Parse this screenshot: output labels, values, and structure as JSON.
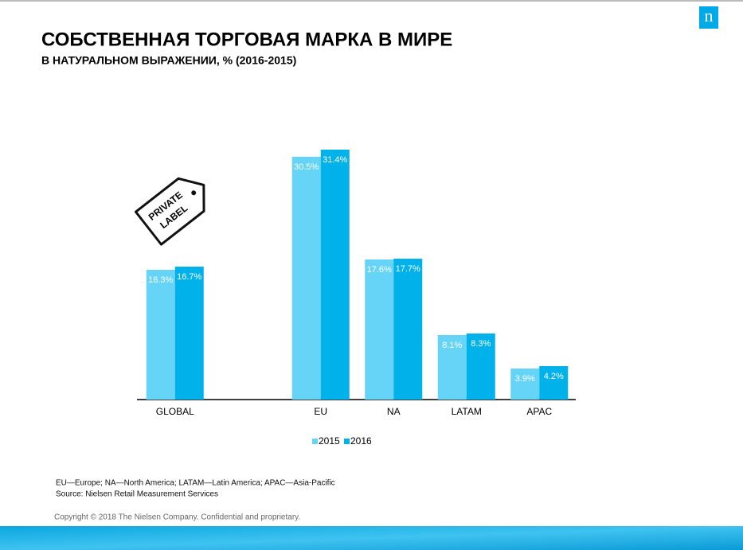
{
  "chart_data": {
    "type": "bar",
    "title": "СОБСТВЕННАЯ ТОРГОВАЯ МАРКА  В МИРЕ",
    "subtitle": "В НАТУРАЛЬНОМ ВЫРАЖЕНИИ, %  (2016-2015)",
    "categories": [
      "GLOBAL",
      null,
      "EU",
      "NA",
      "LATAM",
      "APAC"
    ],
    "series": [
      {
        "name": "2015",
        "color": "#66d4f6",
        "values": [
          16.3,
          null,
          30.5,
          17.6,
          8.1,
          3.9
        ],
        "value_labels": [
          "16.3%",
          null,
          "30.5%",
          "17.6%",
          "8.1%",
          "3.9%"
        ]
      },
      {
        "name": "2016",
        "color": "#00b1ea",
        "values": [
          16.7,
          null,
          31.4,
          17.7,
          8.3,
          4.2
        ],
        "value_labels": [
          "16.7%",
          null,
          "31.4%",
          "17.7%",
          "8.3%",
          "4.2%"
        ]
      }
    ],
    "legend": "bottom",
    "annotations": [
      "PRIVATE",
      "LABEL"
    ]
  },
  "notes": [
    "EU—Europe; NA—North  America; LATAM—Latin  America; APAC—Asia-Pacific",
    "Source: Nielsen Retail Measurement  Services"
  ],
  "copyright": "Copyright © 2018 The Nielsen Company. Confidential and proprietary.",
  "logo": "n"
}
